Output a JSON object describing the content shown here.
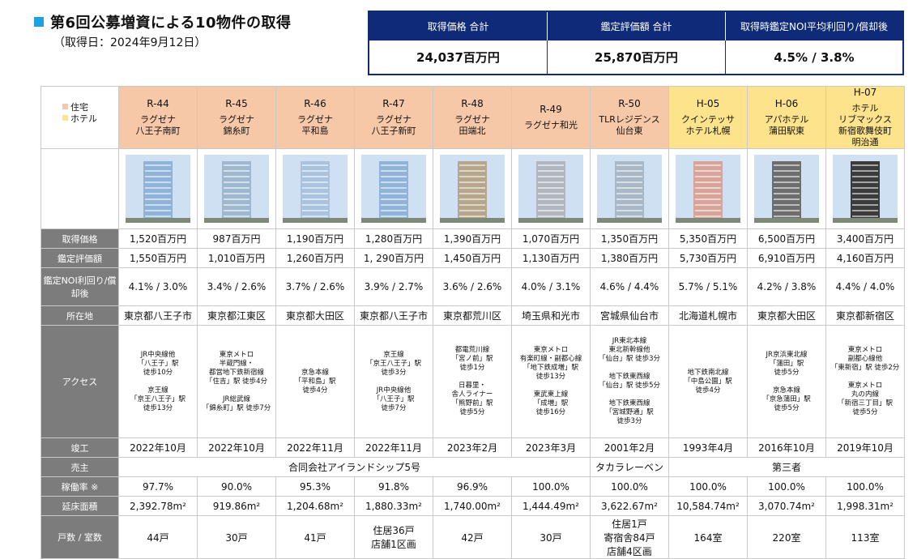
{
  "title": "第6回公募増資による10物件の取得",
  "subtitle": "（取得日：2024年9月12日）",
  "summary": {
    "headers": [
      "取得価格 合計",
      "鑑定評価額 合計",
      "取得時鑑定NOI平均利回り/償却後"
    ],
    "values": [
      "24,037百万円",
      "25,870百万円",
      "4.5% / 3.8%"
    ]
  },
  "legend": {
    "residential": "住宅",
    "hotel": "ホテル"
  },
  "row_labels": {
    "price": "取得価格",
    "appraisal": "鑑定評価額",
    "noi": "鑑定NOI利回り/償却後",
    "location": "所在地",
    "access": "アクセス",
    "completed": "竣工",
    "seller": "売主",
    "occupancy": "稼働率 ※",
    "floor_area": "延床面積",
    "units": "戸数 / 室数"
  },
  "sellers": {
    "a": "合同会社アイランドシップ5号",
    "b": "タカラレーベン",
    "c": "第三者"
  },
  "properties": [
    {
      "code": "R-44",
      "name": "ラグゼナ\n八王子南町",
      "type": "res",
      "price": "1,520百万円",
      "appraisal": "1,550百万円",
      "noi": "4.1% / 3.0%",
      "location": "東京都八王子市",
      "access": "JR中央線他\n「八王子」駅\n徒歩10分\n\n京王線\n「京王八王子」駅\n徒歩13分",
      "completed": "2022年10月",
      "occupancy": "97.7%",
      "floor_area": "2,392.78m²",
      "units": "44戸"
    },
    {
      "code": "R-45",
      "name": "ラグゼナ\n錦糸町",
      "type": "res",
      "price": "987百万円",
      "appraisal": "1,010百万円",
      "noi": "3.4% / 2.6%",
      "location": "東京都江東区",
      "access": "東京メトロ\n半蔵門線・\n都営地下鉄新宿線\n「住吉」駅 徒歩4分\n\nJR総武線\n「錦糸町」駅 徒歩7分",
      "completed": "2022年10月",
      "occupancy": "90.0%",
      "floor_area": "919.86m²",
      "units": "30戸"
    },
    {
      "code": "R-46",
      "name": "ラグゼナ\n平和島",
      "type": "res",
      "price": "1,190百万円",
      "appraisal": "1,260百万円",
      "noi": "3.7% / 2.6%",
      "location": "東京都大田区",
      "access": "京急本線\n「平和島」駅\n徒歩4分",
      "completed": "2022年11月",
      "occupancy": "95.3%",
      "floor_area": "1,204.68m²",
      "units": "41戸"
    },
    {
      "code": "R-47",
      "name": "ラグゼナ\n八王子新町",
      "type": "res",
      "price": "1,280百万円",
      "appraisal": "1, 290百万円",
      "noi": "3.9% / 2.7%",
      "location": "東京都八王子市",
      "access": "京王線\n「京王八王子」駅\n徒歩3分\n\nJR中央線他\n「八王子」駅\n徒歩7分",
      "completed": "2022年11月",
      "occupancy": "91.8%",
      "floor_area": "1,880.33m²",
      "units": "住居36戸\n店舗1区画"
    },
    {
      "code": "R-48",
      "name": "ラグゼナ\n田端北",
      "type": "res",
      "price": "1,390百万円",
      "appraisal": "1,450百万円",
      "noi": "3.6% / 2.6%",
      "location": "東京都荒川区",
      "access": "都電荒川線\n「宮ノ前」駅\n徒歩1分\n\n日暮里・\n舎人ライナー\n「熊野前」駅\n徒歩5分",
      "completed": "2023年2月",
      "occupancy": "96.9%",
      "floor_area": "1,740.00m²",
      "units": "42戸"
    },
    {
      "code": "R-49",
      "name": "ラグゼナ和光",
      "type": "res",
      "price": "1,070百万円",
      "appraisal": "1,130百万円",
      "noi": "4.0% / 3.1%",
      "location": "埼玉県和光市",
      "access": "東京メトロ\n有楽町線・副都心線\n「地下鉄成増」駅\n徒歩13分\n\n東武東上線\n「成増」駅\n徒歩16分",
      "completed": "2023年3月",
      "occupancy": "100.0%",
      "floor_area": "1,444.49m²",
      "units": "30戸"
    },
    {
      "code": "R-50",
      "name": "TLRレジデンス\n仙台東",
      "type": "res",
      "price": "1,350百万円",
      "appraisal": "1,380百万円",
      "noi": "4.6% / 4.4%",
      "location": "宮城県仙台市",
      "access": "JR東北本線\n東北新幹線他\n「仙台」駅 徒歩3分\n\n地下鉄東西線\n「仙台」駅 徒歩5分\n\n地下鉄東西線\n「宮城野通」駅\n徒歩3分",
      "completed": "2001年2月",
      "occupancy": "100.0%",
      "floor_area": "3,622.67m²",
      "units": "住居1戸\n寄宿舎84戸\n店舗4区画"
    },
    {
      "code": "H-05",
      "name": "クインテッサ\nホテル札幌",
      "type": "hot",
      "price": "5,350百万円",
      "appraisal": "5,730百万円",
      "noi": "5.7% / 5.1%",
      "location": "北海道札幌市",
      "access": "地下鉄南北線\n「中島公園」駅\n徒歩4分",
      "completed": "1993年4月",
      "occupancy": "100.0%",
      "floor_area": "10,584.74m²",
      "units": "164室"
    },
    {
      "code": "H-06",
      "name": "アパホテル\n蒲田駅東",
      "type": "hot",
      "price": "6,500百万円",
      "appraisal": "6,910百万円",
      "noi": "4.2% / 3.8%",
      "location": "東京都大田区",
      "access": "JR京浜東北線\n「蒲田」駅\n徒歩5分\n\n京急本線\n「京急蒲田」駅\n徒歩5分",
      "completed": "2016年10月",
      "occupancy": "100.0%",
      "floor_area": "3,070.74m²",
      "units": "220室"
    },
    {
      "code": "H-07",
      "name": "ホテル\nリブマックス\n新宿歌舞伎町\n明治通",
      "type": "hot",
      "price": "3,400百万円",
      "appraisal": "4,160百万円",
      "noi": "4.4% / 4.0%",
      "location": "東京都新宿区",
      "access": "東京メトロ\n副都心線他\n「東新宿」駅 徒歩2分\n\n東京メトロ\n丸の内線\n「新宿三丁目」駅\n徒歩5分",
      "completed": "2019年10月",
      "occupancy": "100.0%",
      "floor_area": "1,998.31m²",
      "units": "113室"
    }
  ]
}
